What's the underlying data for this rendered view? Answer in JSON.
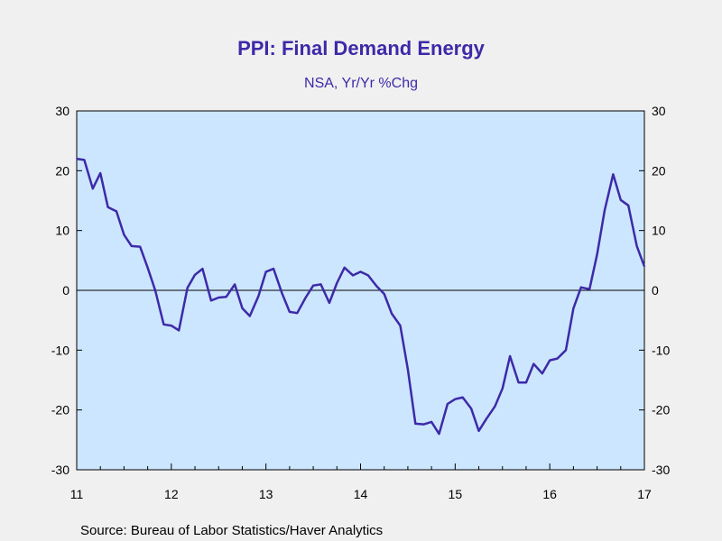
{
  "chart_data": {
    "type": "line",
    "title": "PPI: Final Demand Energy",
    "subtitle": "NSA, Yr/Yr %Chg",
    "source": "Source:  Bureau of Labor Statistics/Haver Analytics",
    "ylim": [
      -30,
      30
    ],
    "yticks": [
      30,
      20,
      10,
      0,
      -10,
      -20,
      -30
    ],
    "xlim": [
      2011,
      2017
    ],
    "xtick_labels": [
      "11",
      "12",
      "13",
      "14",
      "15",
      "16",
      "17"
    ],
    "zero_line": true,
    "grid": false,
    "colors": {
      "line": "#3d2aa8",
      "title": "#3d2aa8",
      "plot_bg": "#cce6ff"
    },
    "series": [
      {
        "x": [
          2011.0,
          2011.08,
          2011.17,
          2011.25,
          2011.33,
          2011.42,
          2011.5,
          2011.58,
          2011.67,
          2011.75,
          2011.83,
          2011.92,
          2012.0,
          2012.08,
          2012.17,
          2012.25,
          2012.33,
          2012.42,
          2012.5,
          2012.58,
          2012.67,
          2012.75,
          2012.83,
          2012.92,
          2013.0,
          2013.08,
          2013.17,
          2013.25,
          2013.33,
          2013.42,
          2013.5,
          2013.58,
          2013.67,
          2013.75,
          2013.83,
          2013.92,
          2014.0,
          2014.08,
          2014.17,
          2014.25,
          2014.33,
          2014.42,
          2014.5,
          2014.58,
          2014.67,
          2014.75,
          2014.83,
          2014.92,
          2015.0,
          2015.08,
          2015.17,
          2015.25,
          2015.33,
          2015.42,
          2015.5,
          2015.58,
          2015.67,
          2015.75,
          2015.83,
          2015.92,
          2016.0,
          2016.08,
          2016.17,
          2016.25,
          2016.33,
          2016.42,
          2016.5,
          2016.58,
          2016.67,
          2016.75,
          2016.83,
          2016.92,
          2017.0
        ],
        "y": [
          22.0,
          21.8,
          17.0,
          19.6,
          13.9,
          13.2,
          9.3,
          7.4,
          7.3,
          3.8,
          0,
          -5.7,
          -5.9,
          -6.7,
          0.4,
          2.6,
          3.6,
          -1.7,
          -1.2,
          -1.1,
          1.0,
          -3.0,
          -4.3,
          -1.0,
          3.1,
          3.6,
          -0.5,
          -3.6,
          -3.8,
          -1.2,
          0.8,
          1.0,
          -2.1,
          1.2,
          3.8,
          2.5,
          3.1,
          2.5,
          0.7,
          -0.6,
          -3.9,
          -5.9,
          -13.2,
          -22.3,
          -22.4,
          -22.0,
          -24.0,
          -19.0,
          -18.2,
          -17.9,
          -19.8,
          -23.5,
          -21.5,
          -19.4,
          -16.4,
          -11.0,
          -15.4,
          -15.4,
          -12.3,
          -13.9,
          -11.7,
          -11.4,
          -10.0,
          -3.0,
          0.5,
          0.2,
          6.0,
          13.4,
          19.4,
          15.1,
          14.2,
          7.4,
          4.0
        ]
      }
    ]
  }
}
